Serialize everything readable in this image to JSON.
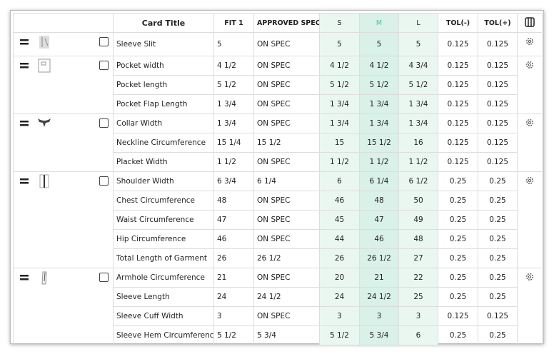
{
  "table": {
    "columns": [
      "Card Title",
      "FIT 1",
      "APPROVED SPEC",
      "S",
      "M",
      "L",
      "TOL(-)",
      "TOL(+)"
    ],
    "groups": [
      {
        "rows": [
          [
            "Sleeve Slit",
            "5",
            "ON SPEC",
            "5",
            "5",
            "5",
            "0.125",
            "0.125"
          ]
        ]
      },
      {
        "rows": [
          [
            "Pocket width",
            "4 1/2",
            "ON SPEC",
            "4 1/2",
            "4 1/2",
            "4 3/4",
            "0.125",
            "0.125"
          ],
          [
            "Pocket length",
            "5 1/2",
            "ON SPEC",
            "5 1/2",
            "5 1/2",
            "5 1/2",
            "0.125",
            "0.125"
          ],
          [
            "Pocket Flap Length",
            "1 3/4",
            "ON SPEC",
            "1 3/4",
            "1 3/4",
            "1 3/4",
            "0.125",
            "0.125"
          ]
        ]
      },
      {
        "rows": [
          [
            "Collar Width",
            "1 3/4",
            "ON SPEC",
            "1 3/4",
            "1 3/4",
            "1 3/4",
            "0.125",
            "0.125"
          ],
          [
            "Neckline Circumference",
            "15 1/4",
            "15 1/2",
            "15",
            "15 1/2",
            "16",
            "0.125",
            "0.125"
          ],
          [
            "Placket Width",
            "1 1/2",
            "ON SPEC",
            "1 1/2",
            "1 1/2",
            "1 1/2",
            "0.125",
            "0.125"
          ]
        ]
      },
      {
        "rows": [
          [
            "Shoulder Width",
            "6 3/4",
            "6 1/4",
            "6",
            "6 1/4",
            "6 1/2",
            "0.25",
            "0.25"
          ],
          [
            "Chest Circumference",
            "48",
            "ON SPEC",
            "46",
            "48",
            "50",
            "0.25",
            "0.25"
          ],
          [
            "Waist Circumference",
            "47",
            "ON SPEC",
            "45",
            "47",
            "49",
            "0.25",
            "0.25"
          ],
          [
            "Hip Circumference",
            "46",
            "ON SPEC",
            "44",
            "46",
            "48",
            "0.25",
            "0.25"
          ],
          [
            "Total Length of Garment",
            "26",
            "26 1/2",
            "26",
            "26 1/2",
            "27",
            "0.25",
            "0.25"
          ]
        ]
      },
      {
        "rows": [
          [
            "Armhole Circumference",
            "21",
            "ON SPEC",
            "20",
            "21",
            "22",
            "0.25",
            "0.25"
          ],
          [
            "Sleeve Length",
            "24",
            "24 1/2",
            "24",
            "24 1/2",
            "25",
            "0.25",
            "0.25"
          ],
          [
            "Sleeve Cuff Width",
            "3",
            "ON SPEC",
            "3",
            "3",
            "3",
            "0.125",
            "0.125"
          ],
          [
            "Sleeve Hem Circumference",
            "5 1/2",
            "5 3/4",
            "5 1/2",
            "5 3/4",
            "6",
            "0.25",
            "0.25"
          ]
        ]
      }
    ]
  }
}
